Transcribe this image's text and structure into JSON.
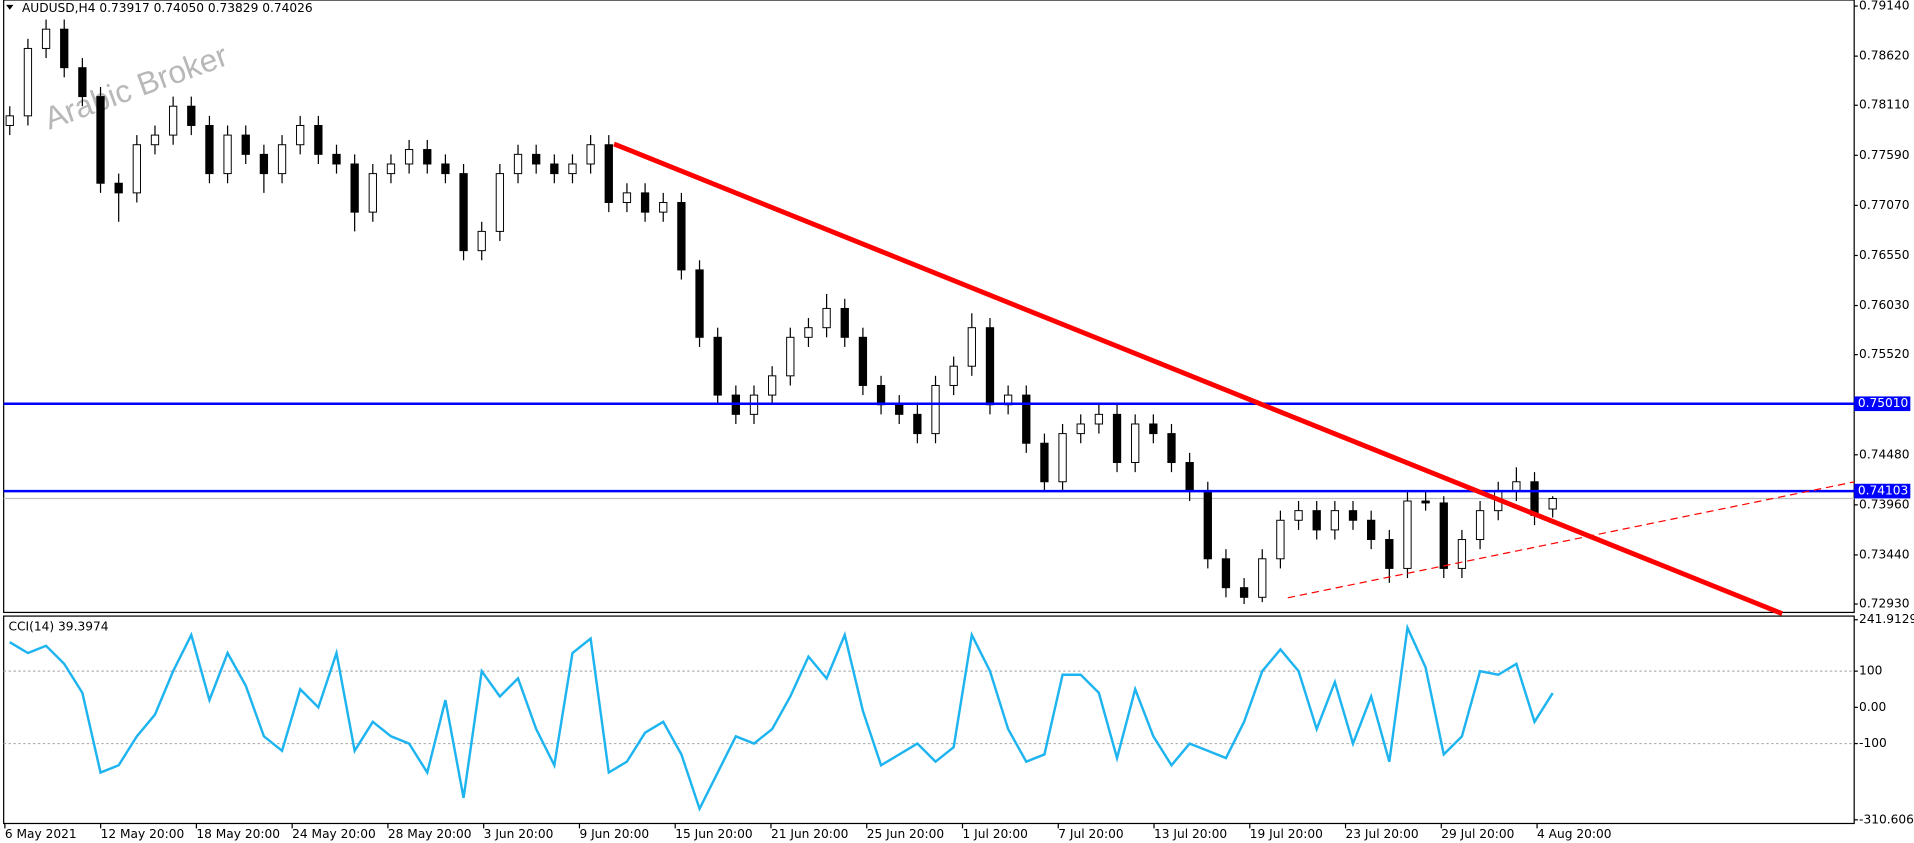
{
  "chart_data": [
    {
      "type": "candlestick",
      "title": "AUDUSD,H4  0.73917 0.74050 0.73829 0.74026",
      "watermark": "Arabic Broker",
      "open": [
        0.779,
        0.78,
        0.787,
        0.789,
        0.785,
        0.782,
        0.773,
        0.772,
        0.777,
        0.778,
        0.781,
        0.779,
        0.774,
        0.778,
        0.776,
        0.774,
        0.777,
        0.779,
        0.776,
        0.775,
        0.77,
        0.774,
        0.775,
        0.7765,
        0.775,
        0.774,
        0.766,
        0.768,
        0.774,
        0.776,
        0.775,
        0.774,
        0.775,
        0.777,
        0.771,
        0.772,
        0.77,
        0.771,
        0.764,
        0.757,
        0.751,
        0.749,
        0.751,
        0.753,
        0.757,
        0.758,
        0.76,
        0.757,
        0.752,
        0.75,
        0.749,
        0.747,
        0.752,
        0.754,
        0.758,
        0.75,
        0.751,
        0.746,
        0.742,
        0.747,
        0.748,
        0.749,
        0.744,
        0.748,
        0.747,
        0.744,
        0.741,
        0.734,
        0.731,
        0.73,
        0.734,
        0.738,
        0.739,
        0.737,
        0.739,
        0.738,
        0.736,
        0.733,
        0.74,
        0.7398,
        0.733,
        0.736,
        0.739,
        0.741,
        0.742,
        0.73917
      ],
      "high": [
        0.781,
        0.788,
        0.79,
        0.79,
        0.786,
        0.783,
        0.774,
        0.778,
        0.779,
        0.782,
        0.782,
        0.78,
        0.779,
        0.779,
        0.777,
        0.778,
        0.78,
        0.78,
        0.777,
        0.776,
        0.775,
        0.776,
        0.7775,
        0.7775,
        0.776,
        0.775,
        0.769,
        0.775,
        0.777,
        0.777,
        0.776,
        0.776,
        0.778,
        0.778,
        0.773,
        0.773,
        0.772,
        0.772,
        0.765,
        0.758,
        0.752,
        0.752,
        0.754,
        0.758,
        0.759,
        0.7615,
        0.761,
        0.758,
        0.753,
        0.751,
        0.75,
        0.753,
        0.755,
        0.7595,
        0.759,
        0.752,
        0.752,
        0.747,
        0.748,
        0.749,
        0.75,
        0.75,
        0.749,
        0.749,
        0.748,
        0.745,
        0.742,
        0.735,
        0.732,
        0.735,
        0.739,
        0.74,
        0.74,
        0.74,
        0.74,
        0.739,
        0.737,
        0.741,
        0.741,
        0.7405,
        0.737,
        0.74,
        0.742,
        0.7435,
        0.743,
        0.7405
      ],
      "low": [
        0.778,
        0.779,
        0.786,
        0.784,
        0.781,
        0.772,
        0.769,
        0.771,
        0.776,
        0.777,
        0.778,
        0.773,
        0.773,
        0.775,
        0.772,
        0.773,
        0.776,
        0.775,
        0.774,
        0.768,
        0.769,
        0.773,
        0.774,
        0.774,
        0.773,
        0.765,
        0.765,
        0.767,
        0.773,
        0.774,
        0.773,
        0.773,
        0.774,
        0.77,
        0.77,
        0.769,
        0.769,
        0.763,
        0.756,
        0.75,
        0.748,
        0.748,
        0.75,
        0.752,
        0.756,
        0.757,
        0.756,
        0.751,
        0.749,
        0.748,
        0.746,
        0.746,
        0.751,
        0.753,
        0.749,
        0.749,
        0.745,
        0.741,
        0.741,
        0.746,
        0.747,
        0.743,
        0.743,
        0.746,
        0.743,
        0.74,
        0.733,
        0.73,
        0.7293,
        0.7295,
        0.733,
        0.737,
        0.736,
        0.736,
        0.737,
        0.735,
        0.7315,
        0.732,
        0.739,
        0.732,
        0.732,
        0.735,
        0.738,
        0.74,
        0.7375,
        0.73829
      ],
      "close": [
        0.78,
        0.787,
        0.789,
        0.785,
        0.782,
        0.773,
        0.772,
        0.777,
        0.778,
        0.781,
        0.779,
        0.774,
        0.778,
        0.776,
        0.774,
        0.777,
        0.779,
        0.776,
        0.775,
        0.77,
        0.774,
        0.775,
        0.7765,
        0.775,
        0.774,
        0.766,
        0.768,
        0.774,
        0.776,
        0.775,
        0.774,
        0.775,
        0.777,
        0.771,
        0.772,
        0.77,
        0.771,
        0.764,
        0.757,
        0.751,
        0.749,
        0.751,
        0.753,
        0.757,
        0.758,
        0.76,
        0.757,
        0.752,
        0.75,
        0.749,
        0.747,
        0.752,
        0.754,
        0.758,
        0.75,
        0.751,
        0.746,
        0.742,
        0.747,
        0.748,
        0.749,
        0.744,
        0.748,
        0.747,
        0.744,
        0.741,
        0.734,
        0.731,
        0.73,
        0.734,
        0.738,
        0.739,
        0.737,
        0.739,
        0.738,
        0.736,
        0.733,
        0.74,
        0.7398,
        0.733,
        0.736,
        0.739,
        0.741,
        0.742,
        0.7385,
        0.74026
      ],
      "ylim": [
        0.72843,
        0.79203
      ],
      "yticks": [
        {
          "value": 0.7914,
          "label": "0.79140"
        },
        {
          "value": 0.7862,
          "label": "0.78620"
        },
        {
          "value": 0.7811,
          "label": "0.78110"
        },
        {
          "value": 0.7759,
          "label": "0.77590"
        },
        {
          "value": 0.7707,
          "label": "0.77070"
        },
        {
          "value": 0.7655,
          "label": "0.76550"
        },
        {
          "value": 0.7603,
          "label": "0.76030"
        },
        {
          "value": 0.7552,
          "label": "0.75520"
        },
        {
          "value": 0.7448,
          "label": "0.74480"
        },
        {
          "value": 0.7396,
          "label": "0.73960"
        },
        {
          "value": 0.7344,
          "label": "0.73440"
        },
        {
          "value": 0.7293,
          "label": "0.72930"
        }
      ],
      "hlines": [
        {
          "value": 0.7501,
          "label": "0.75010"
        },
        {
          "value": 0.74103,
          "label": "0.74103"
        }
      ],
      "hline_color": "#0000ff",
      "x_labels": [
        "6 May 2021",
        "12 May 20:00",
        "18 May 20:00",
        "24 May 20:00",
        "28 May 20:00",
        "3 Jun 20:00",
        "9 Jun 20:00",
        "15 Jun 20:00",
        "21 Jun 20:00",
        "25 Jun 20:00",
        "1 Jul 20:00",
        "7 Jul 20:00",
        "13 Jul 20:00",
        "19 Jul 20:00",
        "23 Jul 20:00",
        "29 Jul 20:00",
        "4 Aug 20:00"
      ]
    },
    {
      "type": "line",
      "title": "CCI(14) 39.3974",
      "color": "#1eb4f0",
      "values": [
        180,
        150,
        170,
        120,
        40,
        -180,
        -160,
        -80,
        -20,
        100,
        200,
        20,
        150,
        60,
        -80,
        -120,
        50,
        0,
        150,
        -120,
        -40,
        -80,
        -100,
        -180,
        20,
        -250,
        100,
        30,
        80,
        -60,
        -160,
        150,
        190,
        -180,
        -150,
        -70,
        -40,
        -130,
        -280,
        -180,
        -80,
        -100,
        -60,
        30,
        140,
        80,
        200,
        -10,
        -160,
        -130,
        -100,
        -150,
        -110,
        200,
        100,
        -60,
        -150,
        -130,
        90,
        90,
        40,
        -140,
        50,
        -80,
        -160,
        -100,
        -120,
        -140,
        -40,
        100,
        160,
        100,
        -60,
        70,
        -100,
        30,
        -150,
        220,
        110,
        -130,
        -80,
        100,
        90,
        120,
        -40,
        39.3974
      ],
      "ylim": [
        -310.6061,
        241.9129
      ],
      "yticks": [
        241.9129,
        100,
        {
          "value": 0,
          "label": "0.00"
        },
        -100,
        -310.6061
      ],
      "levels": [
        100,
        -100
      ]
    }
  ]
}
